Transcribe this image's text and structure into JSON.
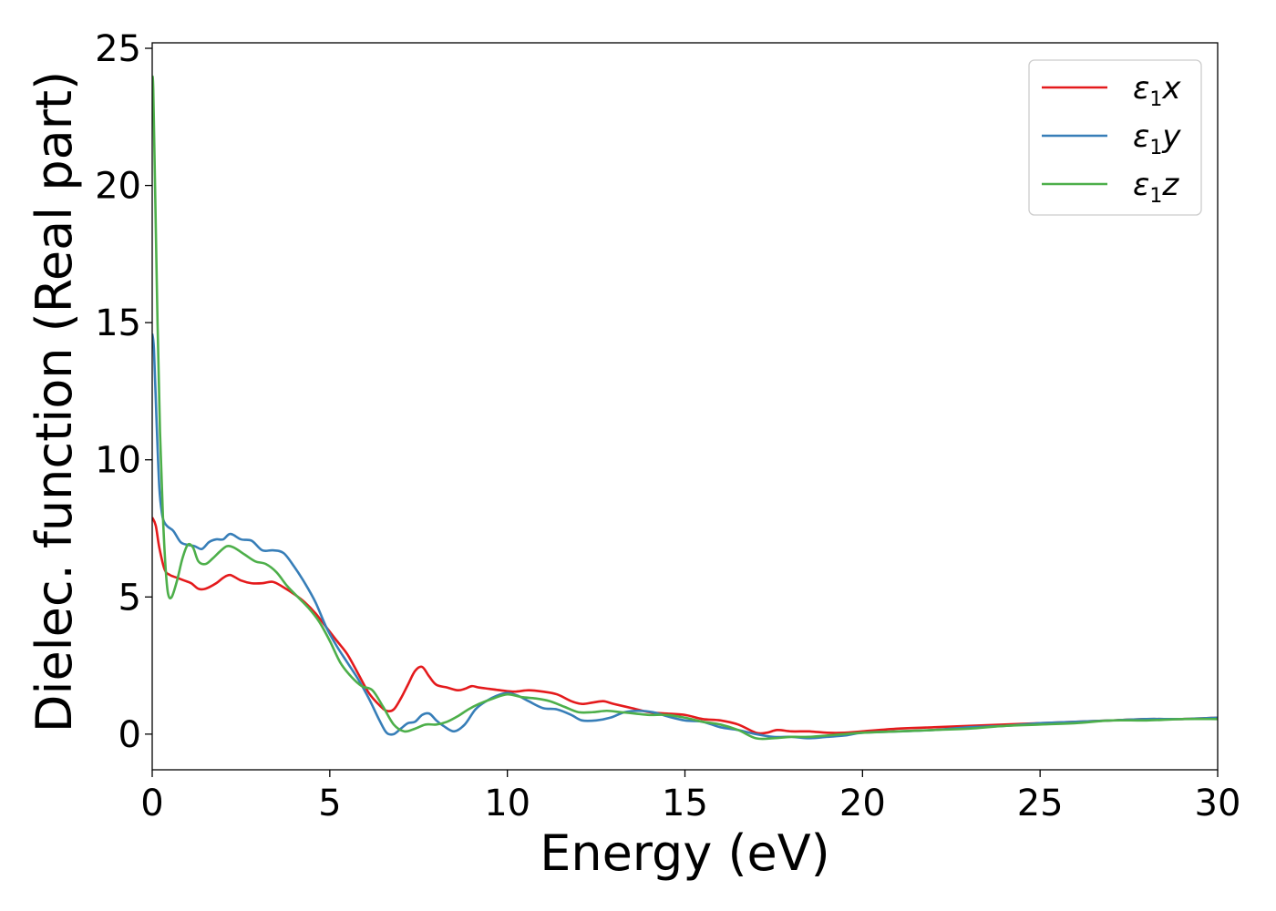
{
  "chart_data": {
    "type": "line",
    "title": "",
    "xlabel": "Energy (eV)",
    "ylabel": "Dielec. function (Real part)",
    "xlim": [
      0,
      30
    ],
    "ylim": [
      -1.3,
      25.2
    ],
    "xticks": [
      0,
      5,
      10,
      15,
      20,
      25,
      30
    ],
    "yticks": [
      0,
      5,
      10,
      15,
      20,
      25
    ],
    "grid": false,
    "legend_position": "top-right",
    "series": [
      {
        "name": "ε1x",
        "legend_main": "ε",
        "legend_sub": "1",
        "legend_tail": "x",
        "color": "#e41a1c",
        "x": [
          0.0,
          0.1,
          0.2,
          0.35,
          0.5,
          0.7,
          0.9,
          1.1,
          1.3,
          1.5,
          1.8,
          2.0,
          2.2,
          2.5,
          2.8,
          3.1,
          3.4,
          3.7,
          4.0,
          4.3,
          4.6,
          4.9,
          5.2,
          5.5,
          5.8,
          6.1,
          6.4,
          6.6,
          6.8,
          7.0,
          7.2,
          7.4,
          7.6,
          7.8,
          8.0,
          8.3,
          8.6,
          8.8,
          9.0,
          9.2,
          9.5,
          9.8,
          10.2,
          10.6,
          11.0,
          11.4,
          11.8,
          12.1,
          12.4,
          12.7,
          13.0,
          13.5,
          14.0,
          14.5,
          15.0,
          15.5,
          16.0,
          16.5,
          17.0,
          17.3,
          17.6,
          18.0,
          18.5,
          19.0,
          19.5,
          20.0,
          21.0,
          22.0,
          23.0,
          24.0,
          25.0,
          26.0,
          27.0,
          28.0,
          29.0,
          30.0
        ],
        "y": [
          7.9,
          7.6,
          6.8,
          6.0,
          5.8,
          5.7,
          5.6,
          5.5,
          5.3,
          5.3,
          5.5,
          5.7,
          5.8,
          5.6,
          5.5,
          5.5,
          5.55,
          5.35,
          5.1,
          4.8,
          4.4,
          3.9,
          3.4,
          2.9,
          2.2,
          1.5,
          1.05,
          0.85,
          0.9,
          1.3,
          1.8,
          2.3,
          2.45,
          2.1,
          1.8,
          1.7,
          1.6,
          1.65,
          1.75,
          1.7,
          1.65,
          1.6,
          1.55,
          1.6,
          1.55,
          1.45,
          1.2,
          1.1,
          1.15,
          1.2,
          1.1,
          0.95,
          0.8,
          0.75,
          0.7,
          0.55,
          0.5,
          0.35,
          0.05,
          0.05,
          0.15,
          0.1,
          0.1,
          0.05,
          0.05,
          0.1,
          0.2,
          0.25,
          0.3,
          0.35,
          0.4,
          0.45,
          0.5,
          0.55,
          0.55,
          0.6
        ]
      },
      {
        "name": "ε1y",
        "legend_main": "ε",
        "legend_sub": "1",
        "legend_tail": "y",
        "color": "#377eb8",
        "x": [
          0.0,
          0.05,
          0.12,
          0.2,
          0.28,
          0.35,
          0.45,
          0.6,
          0.8,
          1.0,
          1.2,
          1.4,
          1.6,
          1.8,
          2.0,
          2.2,
          2.5,
          2.8,
          3.1,
          3.4,
          3.7,
          4.0,
          4.3,
          4.6,
          4.9,
          5.2,
          5.5,
          5.8,
          6.1,
          6.4,
          6.6,
          6.8,
          7.0,
          7.2,
          7.4,
          7.6,
          7.8,
          8.0,
          8.2,
          8.5,
          8.8,
          9.1,
          9.4,
          9.7,
          10.0,
          10.3,
          10.6,
          11.0,
          11.4,
          11.8,
          12.1,
          12.5,
          12.9,
          13.3,
          13.7,
          14.1,
          14.5,
          15.0,
          15.5,
          16.0,
          16.5,
          17.0,
          17.5,
          18.0,
          18.5,
          19.0,
          19.5,
          20.0,
          21.0,
          22.0,
          23.0,
          24.0,
          25.0,
          26.0,
          27.0,
          28.0,
          29.0,
          30.0
        ],
        "y": [
          14.6,
          14.0,
          11.5,
          9.0,
          8.0,
          7.7,
          7.55,
          7.4,
          7.0,
          6.9,
          6.85,
          6.75,
          7.0,
          7.1,
          7.1,
          7.3,
          7.1,
          7.05,
          6.7,
          6.7,
          6.6,
          6.1,
          5.5,
          4.8,
          3.9,
          3.2,
          2.6,
          2.0,
          1.3,
          0.5,
          0.05,
          0.0,
          0.2,
          0.4,
          0.45,
          0.7,
          0.75,
          0.5,
          0.3,
          0.1,
          0.35,
          0.9,
          1.2,
          1.4,
          1.5,
          1.4,
          1.2,
          0.95,
          0.9,
          0.7,
          0.5,
          0.5,
          0.6,
          0.8,
          0.85,
          0.8,
          0.65,
          0.5,
          0.45,
          0.25,
          0.15,
          0.0,
          -0.1,
          -0.1,
          -0.15,
          -0.1,
          -0.05,
          0.05,
          0.1,
          0.15,
          0.25,
          0.3,
          0.4,
          0.45,
          0.5,
          0.55,
          0.55,
          0.6
        ]
      },
      {
        "name": "ε1z",
        "legend_main": "ε",
        "legend_sub": "1",
        "legend_tail": "z",
        "color": "#4daf4a",
        "x": [
          0.0,
          0.03,
          0.08,
          0.15,
          0.22,
          0.3,
          0.38,
          0.45,
          0.55,
          0.7,
          0.85,
          1.0,
          1.15,
          1.3,
          1.5,
          1.7,
          1.9,
          2.1,
          2.3,
          2.6,
          2.9,
          3.2,
          3.5,
          3.8,
          4.1,
          4.4,
          4.7,
          5.0,
          5.3,
          5.6,
          5.9,
          6.2,
          6.5,
          6.8,
          7.1,
          7.4,
          7.7,
          8.0,
          8.3,
          8.6,
          8.9,
          9.2,
          9.6,
          10.0,
          10.4,
          10.8,
          11.2,
          11.6,
          12.0,
          12.4,
          12.8,
          13.2,
          13.6,
          14.0,
          14.5,
          15.0,
          15.5,
          16.0,
          16.5,
          17.0,
          17.5,
          18.0,
          18.5,
          19.0,
          19.5,
          20.0,
          21.0,
          22.0,
          23.0,
          24.0,
          25.0,
          26.0,
          27.0,
          28.0,
          29.0,
          30.0
        ],
        "y": [
          24.0,
          23.5,
          20.0,
          15.0,
          11.0,
          8.0,
          6.0,
          5.1,
          5.0,
          5.6,
          6.4,
          6.9,
          6.8,
          6.3,
          6.2,
          6.4,
          6.65,
          6.85,
          6.8,
          6.55,
          6.3,
          6.2,
          5.9,
          5.4,
          5.0,
          4.6,
          4.1,
          3.4,
          2.6,
          2.1,
          1.75,
          1.6,
          1.0,
          0.35,
          0.1,
          0.2,
          0.35,
          0.35,
          0.45,
          0.65,
          0.9,
          1.1,
          1.3,
          1.45,
          1.35,
          1.3,
          1.2,
          1.0,
          0.8,
          0.8,
          0.85,
          0.8,
          0.75,
          0.7,
          0.7,
          0.6,
          0.45,
          0.35,
          0.15,
          -0.15,
          -0.15,
          -0.1,
          -0.1,
          -0.05,
          0.0,
          0.05,
          0.1,
          0.15,
          0.2,
          0.3,
          0.35,
          0.4,
          0.5,
          0.5,
          0.55,
          0.55
        ]
      }
    ]
  }
}
